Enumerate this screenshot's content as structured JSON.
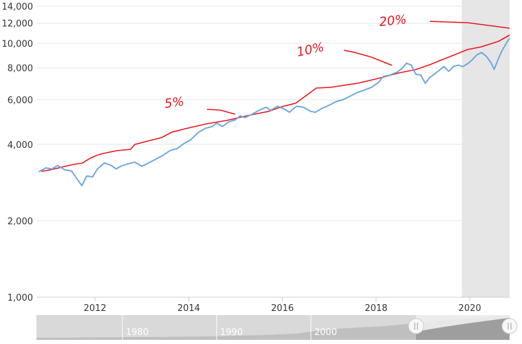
{
  "chart_data": {
    "type": "line",
    "title": "",
    "xlabel": "",
    "ylabel": "",
    "y_scale": "log",
    "ylim": [
      1000,
      14000
    ],
    "xlim": [
      2010.75,
      2020.85
    ],
    "y_ticks": [
      {
        "value": 1000,
        "label": "1,000"
      },
      {
        "value": 2000,
        "label": "2,000"
      },
      {
        "value": 4000,
        "label": "4,000"
      },
      {
        "value": 6000,
        "label": "6,000"
      },
      {
        "value": 8000,
        "label": "8,000"
      },
      {
        "value": 10000,
        "label": "10,000"
      },
      {
        "value": 12000,
        "label": "12,000"
      },
      {
        "value": 14000,
        "label": "14,000"
      }
    ],
    "x_ticks": [
      {
        "value": 2012,
        "label": "2012"
      },
      {
        "value": 2014,
        "label": "2014"
      },
      {
        "value": 2016,
        "label": "2016"
      },
      {
        "value": 2018,
        "label": "2018"
      },
      {
        "value": 2020,
        "label": "2020"
      }
    ],
    "shaded_region": {
      "x_start": 2019.83,
      "x_end": 2020.85,
      "color": "#e6e6e6"
    },
    "grid": "horizontal",
    "series": [
      {
        "color": "#6fa8dc",
        "points": [
          [
            2010.8,
            3120
          ],
          [
            2010.95,
            3230
          ],
          [
            2011.08,
            3200
          ],
          [
            2011.2,
            3300
          ],
          [
            2011.35,
            3180
          ],
          [
            2011.5,
            3140
          ],
          [
            2011.6,
            2950
          ],
          [
            2011.72,
            2750
          ],
          [
            2011.82,
            3000
          ],
          [
            2011.95,
            2980
          ],
          [
            2012.05,
            3200
          ],
          [
            2012.2,
            3380
          ],
          [
            2012.35,
            3300
          ],
          [
            2012.45,
            3200
          ],
          [
            2012.55,
            3280
          ],
          [
            2012.7,
            3350
          ],
          [
            2012.85,
            3400
          ],
          [
            2013.0,
            3280
          ],
          [
            2013.15,
            3380
          ],
          [
            2013.3,
            3500
          ],
          [
            2013.45,
            3620
          ],
          [
            2013.6,
            3780
          ],
          [
            2013.75,
            3850
          ],
          [
            2013.9,
            4030
          ],
          [
            2014.05,
            4180
          ],
          [
            2014.2,
            4450
          ],
          [
            2014.35,
            4620
          ],
          [
            2014.5,
            4700
          ],
          [
            2014.6,
            4850
          ],
          [
            2014.72,
            4700
          ],
          [
            2014.85,
            4900
          ],
          [
            2015.0,
            5000
          ],
          [
            2015.1,
            5180
          ],
          [
            2015.2,
            5100
          ],
          [
            2015.35,
            5250
          ],
          [
            2015.5,
            5450
          ],
          [
            2015.65,
            5600
          ],
          [
            2015.75,
            5450
          ],
          [
            2015.9,
            5650
          ],
          [
            2016.05,
            5500
          ],
          [
            2016.15,
            5350
          ],
          [
            2016.3,
            5650
          ],
          [
            2016.45,
            5600
          ],
          [
            2016.6,
            5400
          ],
          [
            2016.7,
            5350
          ],
          [
            2016.85,
            5550
          ],
          [
            2017.0,
            5700
          ],
          [
            2017.15,
            5900
          ],
          [
            2017.3,
            6000
          ],
          [
            2017.45,
            6200
          ],
          [
            2017.6,
            6400
          ],
          [
            2017.75,
            6550
          ],
          [
            2017.9,
            6700
          ],
          [
            2018.05,
            7000
          ],
          [
            2018.15,
            7400
          ],
          [
            2018.3,
            7500
          ],
          [
            2018.45,
            7700
          ],
          [
            2018.55,
            7950
          ],
          [
            2018.65,
            8350
          ],
          [
            2018.75,
            8200
          ],
          [
            2018.85,
            7550
          ],
          [
            2018.95,
            7500
          ],
          [
            2019.05,
            6950
          ],
          [
            2019.15,
            7350
          ],
          [
            2019.3,
            7700
          ],
          [
            2019.45,
            8100
          ],
          [
            2019.55,
            7750
          ],
          [
            2019.65,
            8100
          ],
          [
            2019.75,
            8200
          ],
          [
            2019.85,
            8100
          ],
          [
            2019.95,
            8300
          ],
          [
            2020.05,
            8600
          ],
          [
            2020.15,
            9000
          ],
          [
            2020.25,
            9200
          ],
          [
            2020.35,
            8900
          ],
          [
            2020.45,
            8400
          ],
          [
            2020.52,
            7900
          ],
          [
            2020.6,
            8600
          ],
          [
            2020.68,
            9300
          ],
          [
            2020.78,
            10000
          ],
          [
            2020.85,
            10500
          ]
        ]
      }
    ],
    "annotations": [
      {
        "text": "5%",
        "color": "#e8141c"
      },
      {
        "text": "10%",
        "color": "#e8141c"
      },
      {
        "text": "20%",
        "color": "#e8141c"
      }
    ],
    "navigator": {
      "labels": [
        "1980",
        "1990",
        "2000"
      ]
    }
  }
}
